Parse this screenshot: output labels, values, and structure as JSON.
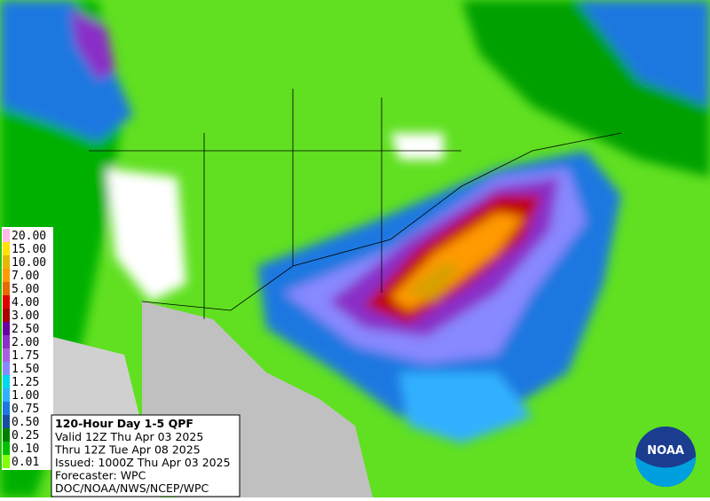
{
  "legend": {
    "items": [
      {
        "label": "20.00",
        "color": "#ffbbe6"
      },
      {
        "label": "15.00",
        "color": "#ffe000"
      },
      {
        "label": "10.00",
        "color": "#e8b800"
      },
      {
        "label": "7.00",
        "color": "#ff9a00"
      },
      {
        "label": "5.00",
        "color": "#e86a00"
      },
      {
        "label": "4.00",
        "color": "#e00000"
      },
      {
        "label": "3.00",
        "color": "#a80000"
      },
      {
        "label": "2.50",
        "color": "#6a00a0"
      },
      {
        "label": "2.00",
        "color": "#8a2fc8"
      },
      {
        "label": "1.75",
        "color": "#a860e0"
      },
      {
        "label": "1.50",
        "color": "#8888ff"
      },
      {
        "label": "1.25",
        "color": "#00d8f0"
      },
      {
        "label": "1.00",
        "color": "#30b0ff"
      },
      {
        "label": "0.75",
        "color": "#1e78e0"
      },
      {
        "label": "0.50",
        "color": "#184ea0"
      },
      {
        "label": "0.25",
        "color": "#008000"
      },
      {
        "label": "0.10",
        "color": "#00c000"
      },
      {
        "label": "0.01",
        "color": "#80ff00"
      }
    ]
  },
  "info": {
    "title": "120-Hour Day 1-5 QPF",
    "lines": [
      "Valid 12Z Thu Apr 03 2025",
      "Thru 12Z Tue Apr 08 2025",
      "Issued: 1000Z Thu Apr 03 2025",
      "Forecaster: WPC",
      "DOC/NOAA/NWS/NCEP/WPC"
    ]
  },
  "logo": {
    "text": "NOAA"
  }
}
